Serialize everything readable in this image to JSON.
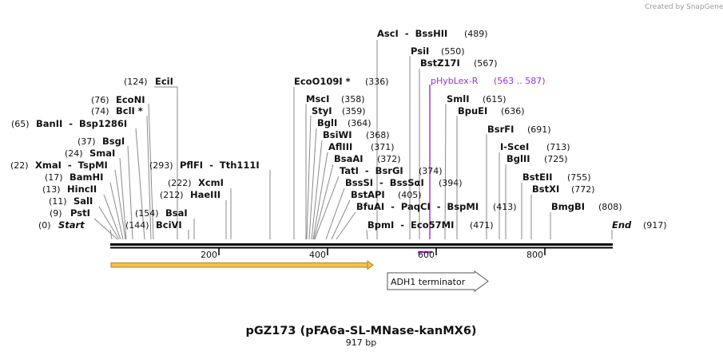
{
  "credit": {
    "text": "Created by",
    "brand": "SnapGene"
  },
  "title": "pGZ173 (pFA6a-SL-MNase-kanMX6)",
  "subtitle": "917 bp",
  "total_bp": 917,
  "ticks": [
    "200",
    "400",
    "600",
    "800"
  ],
  "ends": {
    "start": {
      "pos_label": "(0)",
      "name": "Start"
    },
    "end": {
      "name": "End",
      "pos_label": "(917)"
    }
  },
  "left_enzymes": [
    {
      "pos_label": "(124)",
      "name": "EciI"
    },
    {
      "pos_label": "(76)",
      "name": "EcoNI"
    },
    {
      "pos_label": "(74)",
      "name": "BclI *"
    },
    {
      "pos_label": "(65)",
      "name": "BanII  -  Bsp1286I"
    },
    {
      "pos_label": "(37)",
      "name": "BsgI"
    },
    {
      "pos_label": "(24)",
      "name": "SmaI"
    },
    {
      "pos_label": "(22)",
      "name": "XmaI  -  TspMI"
    },
    {
      "pos_label": "(17)",
      "name": "BamHI"
    },
    {
      "pos_label": "(13)",
      "name": "HincII"
    },
    {
      "pos_label": "(11)",
      "name": "SalI"
    },
    {
      "pos_label": "(9)",
      "name": "PstI"
    }
  ],
  "mid_enzymes": [
    {
      "pos_label": "(293)",
      "name": "PflFI  -  Tth111I"
    },
    {
      "pos_label": "(222)",
      "name": "XcmI"
    },
    {
      "pos_label": "(212)",
      "name": "HaeIII"
    },
    {
      "pos_label": "(154)",
      "name": "BsaI"
    },
    {
      "pos_label": "(144)",
      "name": "BciVI"
    }
  ],
  "right_enzymes": [
    {
      "name": "AscI  -  BssHII",
      "pos_label": "(489)"
    },
    {
      "name": "PsiI",
      "pos_label": "(550)"
    },
    {
      "name": "BstZ17I",
      "pos_label": "(567)"
    },
    {
      "name": "EcoO109I *",
      "pos_label": "(336)"
    },
    {
      "name": "MscI",
      "pos_label": "(358)"
    },
    {
      "name": "StyI",
      "pos_label": "(359)"
    },
    {
      "name": "BglI",
      "pos_label": "(364)"
    },
    {
      "name": "BsiWI",
      "pos_label": "(368)"
    },
    {
      "name": "AflIII",
      "pos_label": "(371)"
    },
    {
      "name": "BsaAI",
      "pos_label": "(372)"
    },
    {
      "name": "TatI  -  BsrGI",
      "pos_label": "(374)"
    },
    {
      "name": "BssSI  -  BssSαI",
      "pos_label": "(394)"
    },
    {
      "name": "BstAPI",
      "pos_label": "(405)"
    },
    {
      "name": "BfuAI  -  PaqCI  -  BspMI",
      "pos_label": "(413)"
    },
    {
      "name": "BpmI  -  Eco57MI",
      "pos_label": "(471)"
    },
    {
      "name": "SmlI",
      "pos_label": "(615)"
    },
    {
      "name": "BpuEI",
      "pos_label": "(636)"
    },
    {
      "name": "BsrFI",
      "pos_label": "(691)"
    },
    {
      "name": "I-SceI",
      "pos_label": "(713)"
    },
    {
      "name": "BglII",
      "pos_label": "(725)"
    },
    {
      "name": "BstEII",
      "pos_label": "(755)"
    },
    {
      "name": "BstXI",
      "pos_label": "(772)"
    },
    {
      "name": "BmgBI",
      "pos_label": "(808)"
    }
  ],
  "primer": {
    "name": "pHybLex-R",
    "range": "(563 .. 587)"
  },
  "features": [
    {
      "name": "ADH1 terminator"
    }
  ],
  "colors": {
    "backbone": "#000000",
    "orf_fill": "#f2c24e",
    "orf_border": "#b8860b",
    "primer": "#9b30d9",
    "feature_border": "#555555"
  }
}
